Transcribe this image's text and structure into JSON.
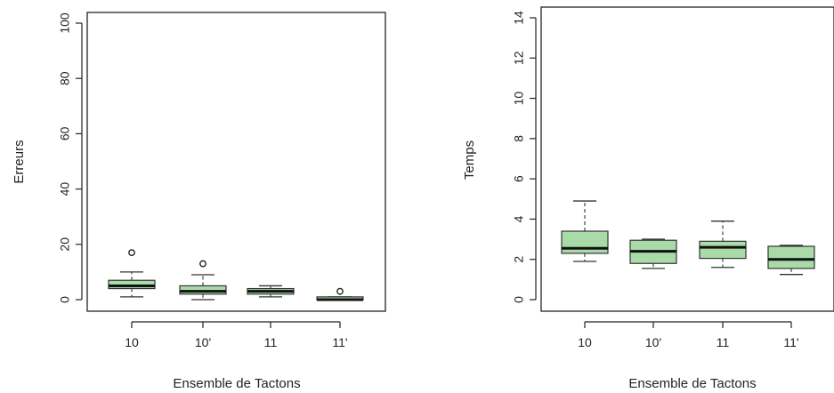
{
  "chart_data": [
    {
      "type": "box",
      "xlabel": "Ensemble de Tactons",
      "ylabel": "Erreurs",
      "categories": [
        "10",
        "10'",
        "11",
        "11'"
      ],
      "ylim": [
        0,
        100
      ],
      "yticks": [
        "0",
        "20",
        "40",
        "60",
        "80",
        "100"
      ],
      "box_color": "#a8dba8",
      "boxes": [
        {
          "category": "10",
          "whisker_low": 1,
          "q1": 4,
          "median": 5,
          "q3": 7,
          "whisker_high": 10,
          "outliers": [
            17
          ]
        },
        {
          "category": "10'",
          "whisker_low": 0,
          "q1": 2,
          "median": 3,
          "q3": 5,
          "whisker_high": 9,
          "outliers": [
            13
          ]
        },
        {
          "category": "11",
          "whisker_low": 1,
          "q1": 2,
          "median": 3,
          "q3": 4,
          "whisker_high": 5,
          "outliers": []
        },
        {
          "category": "11'",
          "whisker_low": 0,
          "q1": 0,
          "median": 0,
          "q3": 1,
          "whisker_high": 1,
          "outliers": [
            3
          ]
        }
      ]
    },
    {
      "type": "box",
      "xlabel": "Ensemble de Tactons",
      "ylabel": "Temps",
      "categories": [
        "10",
        "10'",
        "11",
        "11'"
      ],
      "ylim": [
        0,
        14
      ],
      "yticks": [
        "0",
        "2",
        "4",
        "6",
        "8",
        "10",
        "12",
        "14"
      ],
      "box_color": "#a8dba8",
      "boxes": [
        {
          "category": "10",
          "whisker_low": 1.9,
          "q1": 2.3,
          "median": 2.55,
          "q3": 3.4,
          "whisker_high": 4.9,
          "outliers": []
        },
        {
          "category": "10'",
          "whisker_low": 1.55,
          "q1": 1.8,
          "median": 2.4,
          "q3": 2.95,
          "whisker_high": 3.0,
          "outliers": []
        },
        {
          "category": "11",
          "whisker_low": 1.6,
          "q1": 2.05,
          "median": 2.6,
          "q3": 2.9,
          "whisker_high": 3.9,
          "outliers": []
        },
        {
          "category": "11'",
          "whisker_low": 1.25,
          "q1": 1.55,
          "median": 2.0,
          "q3": 2.65,
          "whisker_high": 2.7,
          "outliers": []
        }
      ]
    }
  ]
}
